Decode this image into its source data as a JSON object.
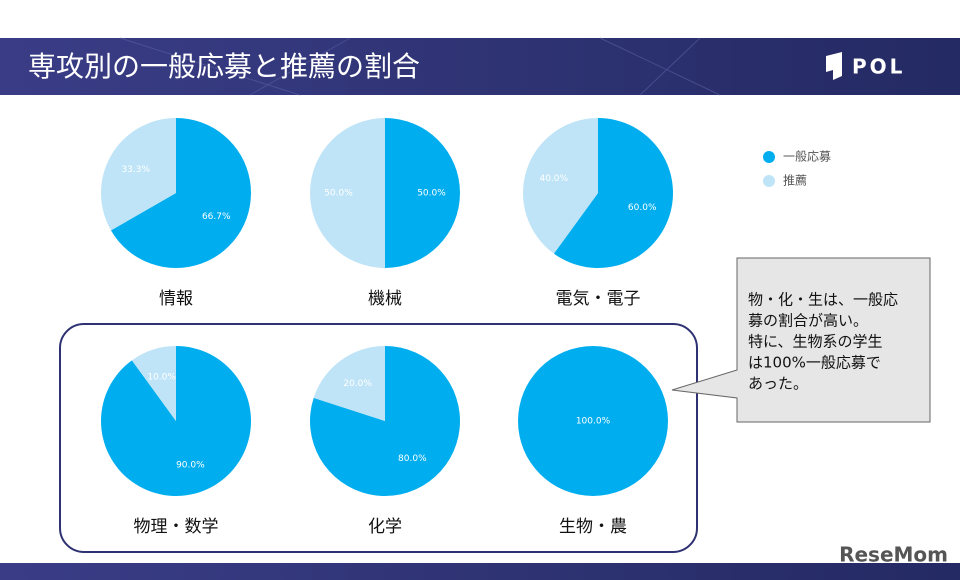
{
  "header": {
    "title": "専攻別の一般応募と推薦の割合",
    "logo": "POL"
  },
  "legend": {
    "position": "right"
  },
  "chart_data": [
    {
      "type": "pie",
      "title": "情報",
      "categories": [
        "一般応募",
        "推薦"
      ],
      "colors": [
        "#00aeef",
        "#bfe4f7"
      ],
      "values": [
        66.7,
        33.3
      ],
      "value_labels": [
        "66.7%",
        "33.3%"
      ]
    },
    {
      "type": "pie",
      "title": "機械",
      "categories": [
        "一般応募",
        "推薦"
      ],
      "colors": [
        "#00aeef",
        "#bfe4f7"
      ],
      "values": [
        50.0,
        50.0
      ],
      "value_labels": [
        "50.0%",
        "50.0%"
      ]
    },
    {
      "type": "pie",
      "title": "電気・電子",
      "categories": [
        "一般応募",
        "推薦"
      ],
      "colors": [
        "#00aeef",
        "#bfe4f7"
      ],
      "values": [
        60.0,
        40.0
      ],
      "value_labels": [
        "60.0%",
        "40.0%"
      ]
    },
    {
      "type": "pie",
      "title": "物理・数学",
      "categories": [
        "一般応募",
        "推薦"
      ],
      "colors": [
        "#00aeef",
        "#bfe4f7"
      ],
      "values": [
        90.0,
        10.0
      ],
      "value_labels": [
        "90.0%",
        "10.0%"
      ]
    },
    {
      "type": "pie",
      "title": "化学",
      "categories": [
        "一般応募",
        "推薦"
      ],
      "colors": [
        "#00aeef",
        "#bfe4f7"
      ],
      "values": [
        80.0,
        20.0
      ],
      "value_labels": [
        "80.0%",
        "20.0%"
      ]
    },
    {
      "type": "pie",
      "title": "生物・農",
      "categories": [
        "一般応募",
        "推薦"
      ],
      "colors": [
        "#00aeef",
        "#bfe4f7"
      ],
      "values": [
        100.0,
        0
      ],
      "value_labels": [
        "100.0%",
        null
      ]
    }
  ],
  "callout": {
    "lines": [
      "物・化・生は、一般応",
      "募の割合が高い。",
      "特に、生物系の学生",
      "は100%一般応募で",
      "あった。"
    ]
  },
  "watermark": "ReseMom"
}
